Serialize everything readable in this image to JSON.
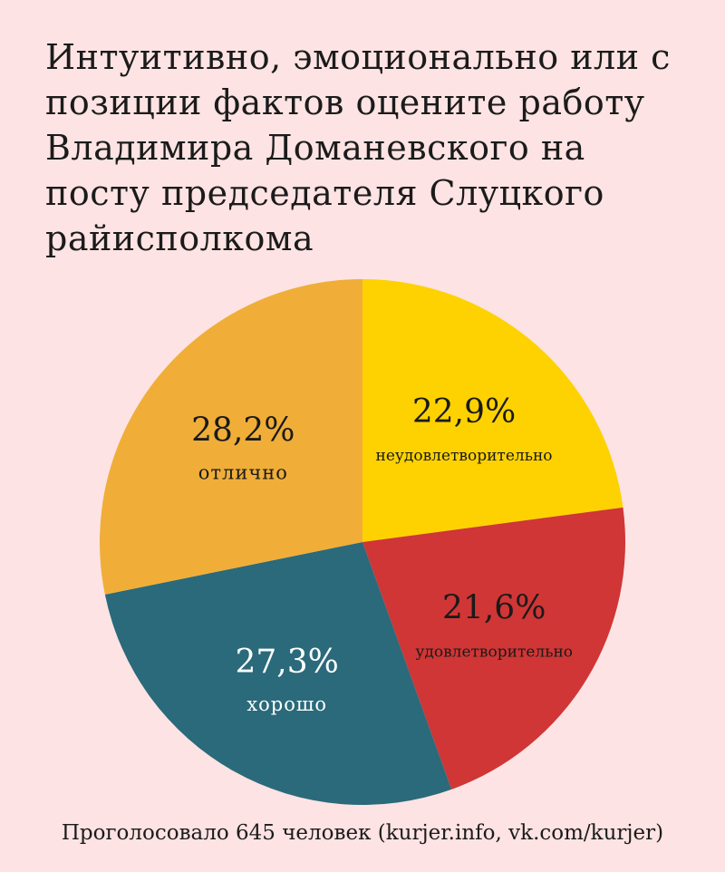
{
  "title": "Интуитивно, эмоционально или с позиции фактов оцените работу Владимира Доманевского на посту председателя Слуцкого райисполкома",
  "footer": "Проголосовало 645 человек (kurjer.info, vk.com/kurjer)",
  "chart_data": {
    "type": "pie",
    "title": "Интуитивно, эмоционально или с позиции фактов оцените работу Владимира Доманевского на посту председателя Слуцкого райисполкома",
    "slices": [
      {
        "label": "неудовлетворительно",
        "value": 22.9,
        "value_label": "22,9%",
        "color": "#fdd200",
        "text_color": "#1a1a1a"
      },
      {
        "label": "удовлетворительно",
        "value": 21.6,
        "value_label": "21,6%",
        "color": "#cf3635",
        "text_color": "#1a1a1a"
      },
      {
        "label": "хорошо",
        "value": 27.3,
        "value_label": "27,3%",
        "color": "#2a6a7a",
        "text_color": "#ffffff"
      },
      {
        "label": "отлично",
        "value": 28.2,
        "value_label": "28,2%",
        "color": "#f0ae38",
        "text_color": "#1a1a1a"
      }
    ],
    "start": "12 o'clock",
    "direction": "clockwise",
    "legend": "none"
  }
}
